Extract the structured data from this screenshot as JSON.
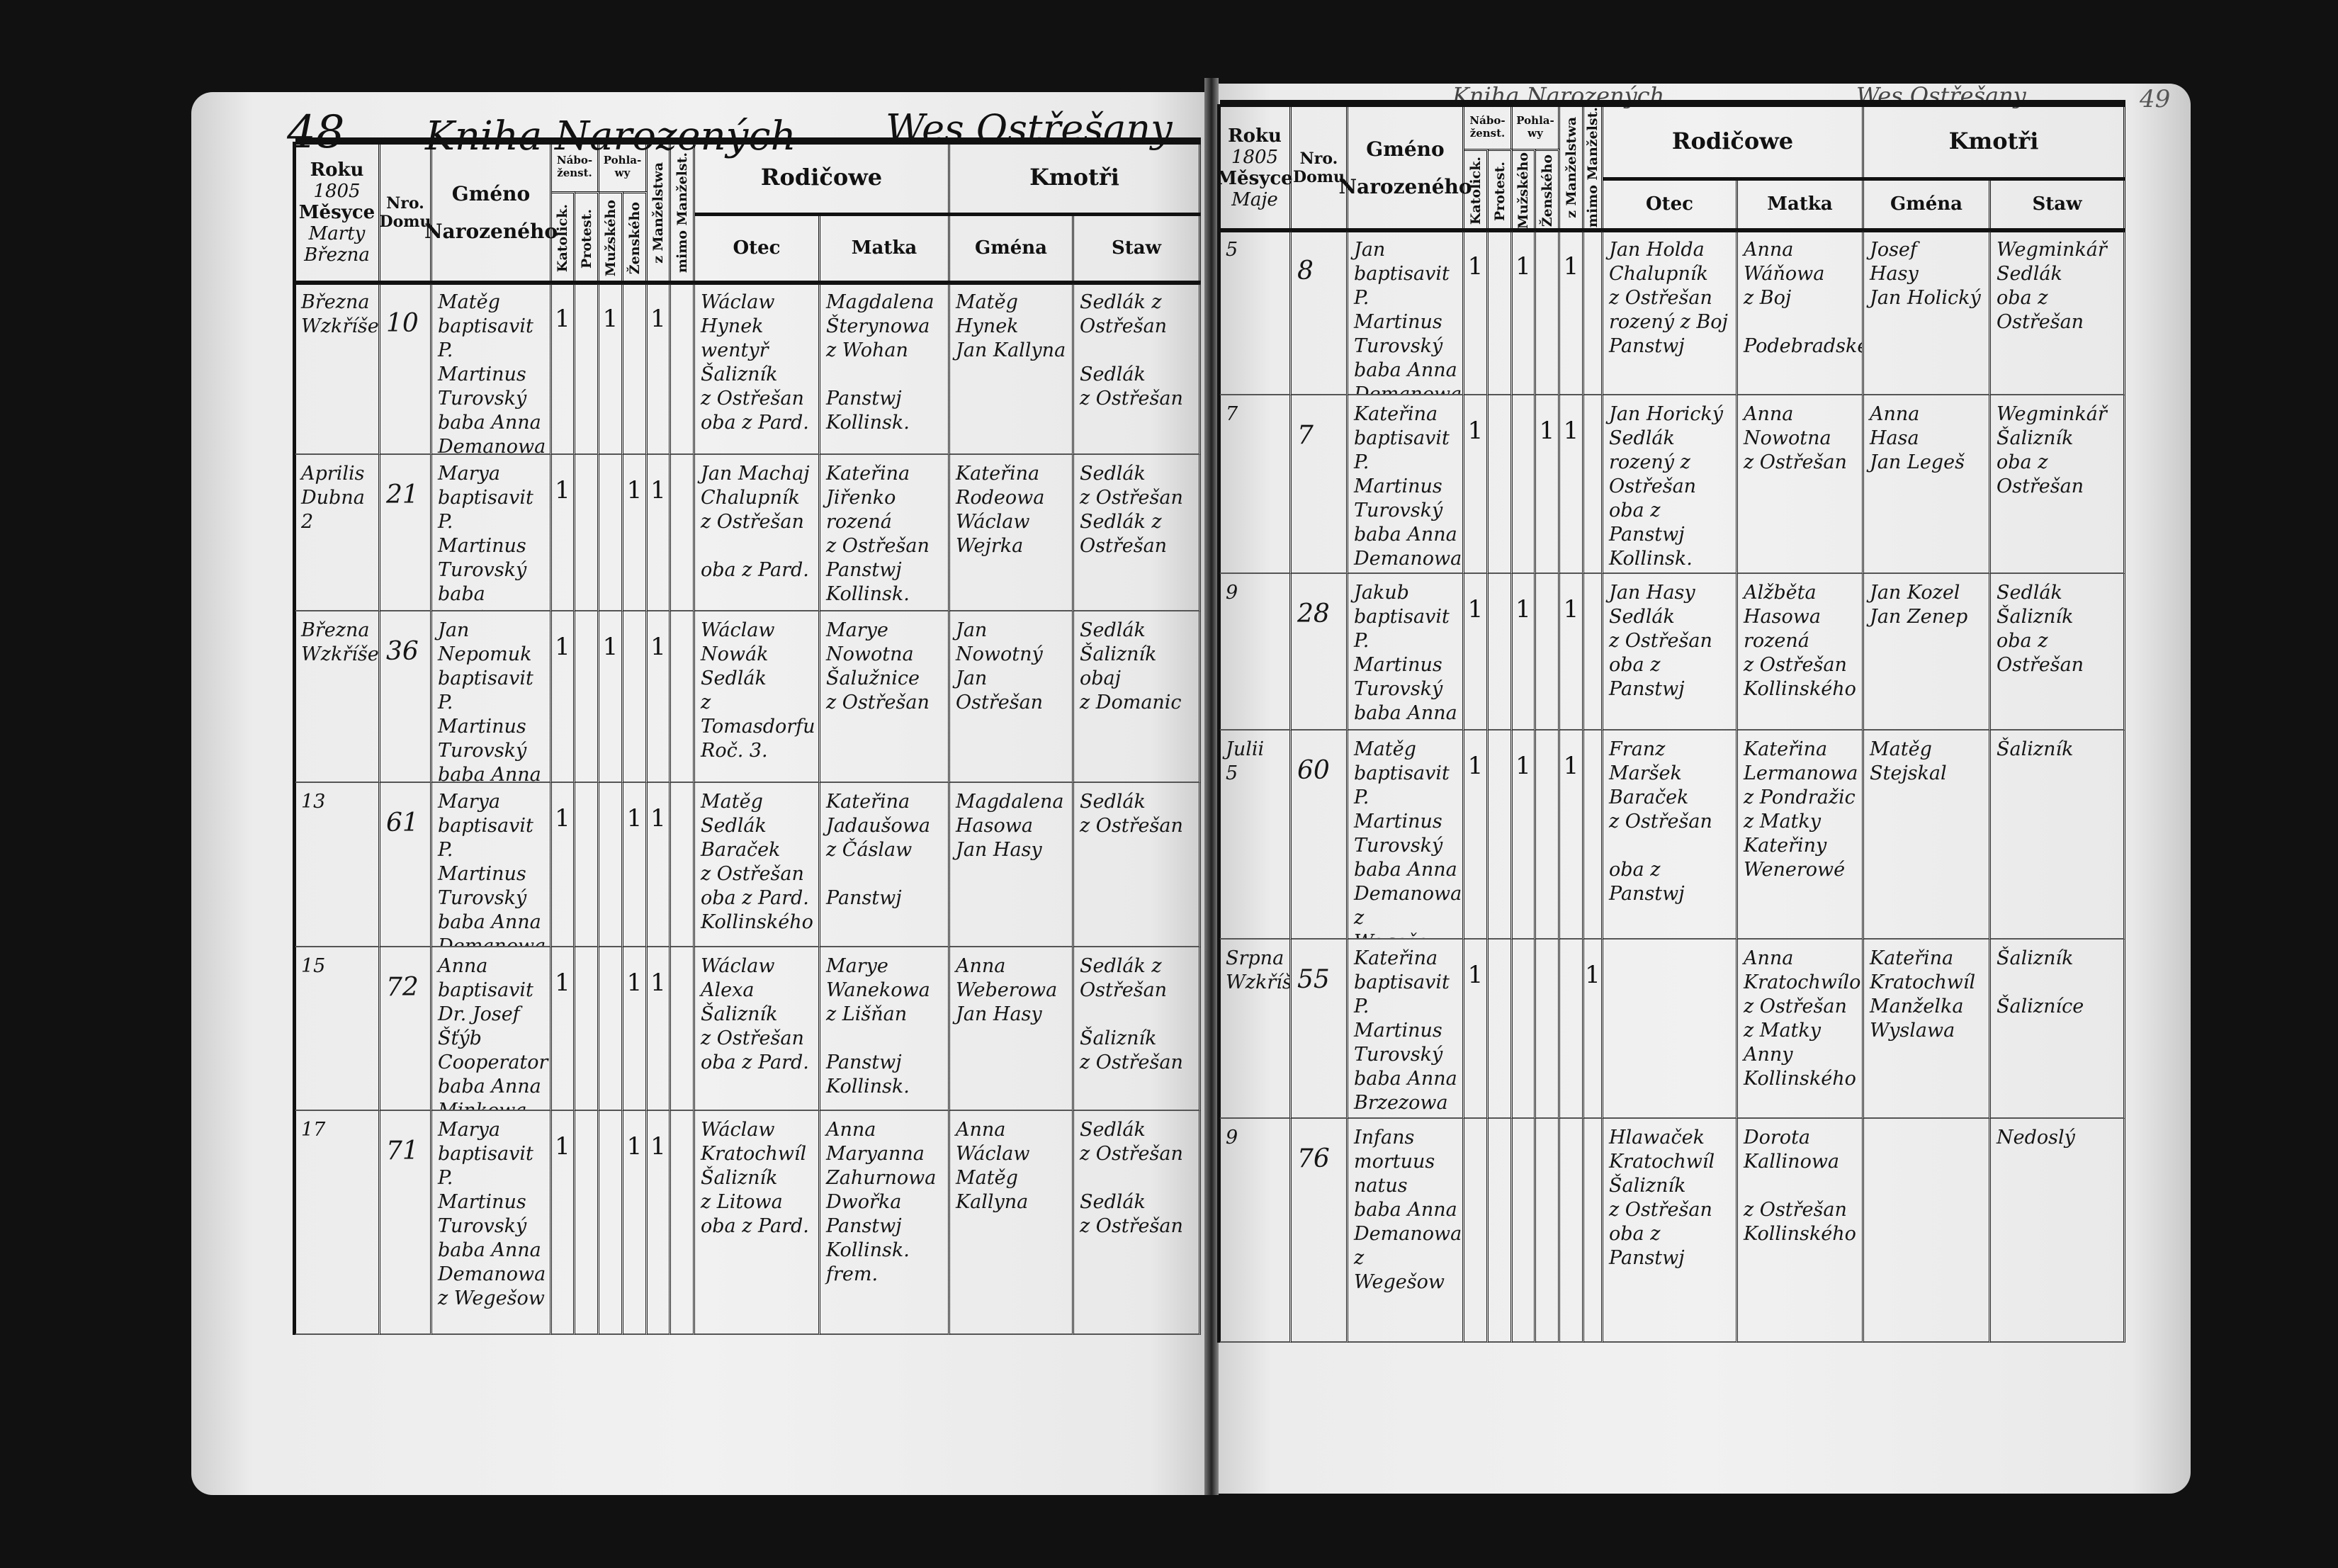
{
  "left_page": {
    "page_number": "48",
    "title": "Kniha Narozených",
    "subtitle": "Wes Ostřešany",
    "header": {
      "roku": "Roku",
      "year": "1805",
      "mesyce": "Měsyce",
      "month": "Marty Března",
      "nro": "Nro.",
      "domu": "Domu",
      "gmeno": "Gméno",
      "narozeneho": "Narozeného",
      "nabozenstvi": "Nábo-ženst.",
      "katolick": "Katolick.",
      "protest": "Protest.",
      "pohlawi": "Pohla-wy",
      "muzskeho": "Mužského",
      "zenskeho": "Ženského",
      "z_manzelstwa": "z Manželstwa",
      "mimo_manzelstwi": "mimo Manželst.",
      "rodicowe": "Rodičowe",
      "otec": "Otec",
      "matka": "Matka",
      "kmotri": "Kmotři",
      "gmena": "Gména",
      "staw": "Staw"
    },
    "entries": [
      {
        "date": "Března\nWzkříšen",
        "house": "10",
        "name": "Matěg\nbaptisavit\nP. Martinus\nTurovský\nbaba Anna\nDemanowa\nz Lžowic",
        "marks": [
          "1",
          "",
          "1",
          "",
          "1",
          ""
        ],
        "father": "Wáclaw\nHynek\nwentyř\nŠalizník\nz Ostřešan\noba z Pard.",
        "mother": "Magdalena\nŠterynowa\nz Wohan\n\nPanstwj Kollinsk.",
        "godparents": "Matěg\nHynek\nJan Kallyna",
        "status": "Sedlák z Ostřešan\n\nSedlák\nz Ostřešan"
      },
      {
        "date": "Aprilis\nDubna\n2",
        "house": "21",
        "name": "Marya\nbaptisavit\nP. Martinus\nTurovský\nbaba Maria\nKaudyška",
        "marks": [
          "1",
          "",
          "",
          "1",
          "1",
          ""
        ],
        "father": "Jan Machaj\nChalupník\nz Ostřešan\n\noba z Pard.",
        "mother": "Kateřina\nJiřenko\nrozená\nz Ostřešan\nPanstwj Kollinsk.",
        "godparents": "Kateřina\nRodeowa\nWáclaw\nWejrka",
        "status": "Sedlák\nz Ostřešan\nSedlák z\nOstřešan"
      },
      {
        "date": "Března\nWzkříšen",
        "house": "36",
        "name": "Jan Nepomuk\nbaptisavit\nP. Martinus\nTurovský\nbaba Anna\nHajatowa",
        "marks": [
          "1",
          "",
          "1",
          "",
          "1",
          ""
        ],
        "father": "Wáclaw\nNowák\nSedlák\nz Tomasdorfu\nRoč. 3.",
        "mother": "Marye\nNowotna\nŠalužnice\nz Ostřešan",
        "godparents": "Jan Nowotný\nJan Ostřešan",
        "status": "Sedlák\nŠalizník\nobaj\nz Domanic"
      },
      {
        "date": "13",
        "house": "61",
        "name": "Marya\nbaptisavit\nP. Martinus\nTurovský\nbaba Anna\nDemanowa",
        "marks": [
          "1",
          "",
          "",
          "1",
          "1",
          ""
        ],
        "father": "Matěg\nSedlák\nBaraček\nz Ostřešan\noba z Pard.\nKollinského",
        "mother": "Kateřina\nJadaušowa\nz Čáslaw\n\nPanstwj",
        "godparents": "Magdalena\nHasowa\nJan Hasy",
        "status": "Sedlák\nz Ostřešan"
      },
      {
        "date": "15",
        "house": "72",
        "name": "Anna\nbaptisavit\nDr. Josef Šťýb\nCooperator\nbaba Anna\nMinkowa",
        "marks": [
          "1",
          "",
          "",
          "1",
          "1",
          ""
        ],
        "father": "Wáclaw\nAlexa\nŠalizník\nz Ostřešan\noba z Pard.",
        "mother": "Marye\nWanekowa\nz Lišňan\n\nPanstwj Kollinsk.",
        "godparents": "Anna\nWeberowa\nJan Hasy",
        "status": "Sedlák z Ostřešan\n\nŠalizník\nz Ostřešan"
      },
      {
        "date": "17",
        "house": "71",
        "name": "Marya\nbaptisavit\nP. Martinus\nTurovský\nbaba Anna\nDemanowa\nz Wegešow",
        "marks": [
          "1",
          "",
          "",
          "1",
          "1",
          ""
        ],
        "father": "Wáclaw\nKratochwíl\nŠalizník\nz Litowa\noba z Pard.",
        "mother": "Anna\nMaryanna\nZahurnowa\nDwořka\nPanstwj Kollinsk.\nfrem.",
        "godparents": "Anna\nWáclaw\nMatěg\nKallyna",
        "status": "Sedlák\nz Ostřešan\n\nSedlák\nz Ostřešan"
      }
    ]
  },
  "right_page": {
    "page_number": "49",
    "title": "Kniha Narozených",
    "subtitle": "Wes Ostřešany",
    "header": {
      "roku": "Roku",
      "year": "1805",
      "mesyce": "Měsyce",
      "month": "Maje",
      "nro": "Nro.",
      "domu": "Domu",
      "gmeno": "Gméno",
      "narozeneho": "Narozeného",
      "nabozenstvi": "Nábo-ženst.",
      "katolick": "Katolick.",
      "protest": "Protest.",
      "pohlawi": "Pohla-wy",
      "muzskeho": "Mužského",
      "zenskeho": "Ženského",
      "z_manzelstwa": "z Manželstwa",
      "mimo_manzelstwi": "mimo Manželst.",
      "rodicowe": "Rodičowe",
      "otec": "Otec",
      "matka": "Matka",
      "kmotri": "Kmotři",
      "gmena": "Gména",
      "staw": "Staw"
    },
    "entries": [
      {
        "date": "5",
        "house": "8",
        "name": "Jan\nbaptisavit\nP. Martinus\nTurovský\nbaba Anna\nDemanowa\nz Wegešow",
        "marks": [
          "1",
          "",
          "1",
          "",
          "1",
          ""
        ],
        "father": "Jan Holda\nChalupník\nz Ostřešan\nrozený z Boj\nPanstwj",
        "mother": "Anna\nWáňowa\nz Boj\n\nPodebradského",
        "godparents": "Josef\nHasy\nJan Holický",
        "status": "Wegminkář\nSedlák\noba z Ostřešan"
      },
      {
        "date": "7",
        "house": "7",
        "name": "Kateřina\nbaptisavit\nP. Martinus\nTurovský\nbaba Anna\nDemanowa\nz Wegešow",
        "marks": [
          "1",
          "",
          "",
          "1",
          "1",
          ""
        ],
        "father": "Jan Horický\nSedlák\nrozený z\nOstřešan\noba z Panstwj Kollinsk.",
        "mother": "Anna\nNowotna\nz Ostřešan",
        "godparents": "Anna\nHasa\nJan Legeš",
        "status": "Wegminkář\nŠalizník\noba z Ostřešan"
      },
      {
        "date": "9",
        "house": "28",
        "name": "Jakub\nbaptisavit\nP. Martinus\nTurovský\nbaba Anna\nDemanowa",
        "marks": [
          "1",
          "",
          "1",
          "",
          "1",
          ""
        ],
        "father": "Jan Hasy\nSedlák\nz Ostřešan\noba z Panstwj",
        "mother": "Alžběta\nHasowa\nrozená\nz Ostřešan\nKollinského",
        "godparents": "Jan Kozel\nJan Zenep",
        "status": "Sedlák\nŠalizník\noba z Ostřešan"
      },
      {
        "date": "Julii\n5",
        "house": "60",
        "name": "Matěg\nbaptisavit\nP. Martinus\nTurovský\nbaba Anna\nDemanowa\nz Wegešow",
        "marks": [
          "1",
          "",
          "1",
          "",
          "1",
          ""
        ],
        "father": "Franz\nMaršek\nBaraček\nz Ostřešan\n\noba z Panstwj",
        "mother": "Kateřina\nLermanowa\nz Pondražic\nz Matky\nKateřiny\nWenerowé",
        "godparents": "Matěg Stejskal",
        "status": "Šalizník"
      },
      {
        "date": "Srpna\nWzkříšen",
        "house": "55",
        "name": "Kateřina\nbaptisavit\nP. Martinus\nTurovský\nbaba Anna\nBrzezowa\nz Pondražic",
        "marks": [
          "1",
          "",
          "",
          "",
          "",
          "1"
        ],
        "father": "",
        "mother": "Anna\nKratochwílowa\nz Ostřešan\nz Matky\nAnny\nKollinského",
        "godparents": "Kateřina\nKratochwíl\nManželka\nWyslawa",
        "status": "Šalizník\n\nŠalizníce"
      },
      {
        "date": "9",
        "house": "76",
        "name": "Infans\nmortuus\nnatus\nbaba Anna\nDemanowa\nz Wegešow",
        "marks": [
          "",
          "",
          "",
          "",
          "",
          ""
        ],
        "father": "Hlawaček\nKratochwíl\nŠalizník\nz Ostřešan\noba z Panstwj",
        "mother": "Dorota\nKallinowa\n\nz Ostřešan\nKollinského",
        "godparents": "",
        "status": "Nedoslý"
      }
    ]
  }
}
